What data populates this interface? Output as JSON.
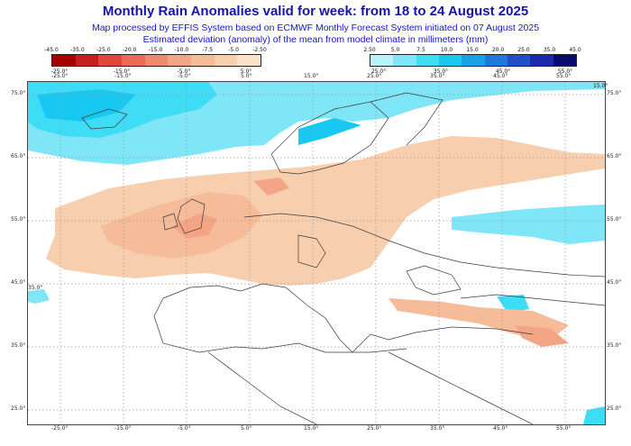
{
  "title": "Monthly Rain Anomalies valid for week: from 18 to 24 August 2025",
  "subtitle1": "Map processed by EFFIS System based on ECMWF Monthly Forecast System initiated on 07 August 2025",
  "subtitle2": "Estimated deviation (anomaly) of the mean from model climate in millimeters (mm)",
  "negative_scale": {
    "upper_labels": [
      "-45.0",
      "-35.0",
      "-25.0",
      "-20.0",
      "-15.0",
      "-10.0",
      "-7.5",
      "-5.0",
      "-2.50"
    ],
    "lower_labels": [
      "-25.0°",
      "-15.0°",
      "-5.0°",
      "5.0°"
    ],
    "colors": [
      "#a50000",
      "#c81e1e",
      "#e0463c",
      "#ea6a56",
      "#f08a6c",
      "#f4a585",
      "#f6bb98",
      "#f8cfae",
      "#fbe2c8"
    ]
  },
  "positive_scale": {
    "upper_labels": [
      "2.50",
      "5.0",
      "7.5",
      "10.0",
      "15.0",
      "20.0",
      "25.0",
      "35.0",
      "45.0"
    ],
    "lower_labels": [
      "25.0°",
      "35.0°",
      "45.0°",
      "55.0°"
    ],
    "colors": [
      "#b8f2fa",
      "#7fe6f7",
      "#3fdcf5",
      "#18c8f0",
      "#1aa0e6",
      "#1e7ad8",
      "#2050c8",
      "#1a2aa8",
      "#0a0a70"
    ]
  },
  "map_axes": {
    "x_ticks": [
      "-25.0°",
      "-15.0°",
      "-5.0°",
      "5.0°",
      "15.0°",
      "25.0°",
      "35.0°",
      "45.0°",
      "55.0°"
    ],
    "y_ticks": [
      "75.0°",
      "65.0°",
      "55.0°",
      "45.0°",
      "35.0°",
      "25.0°"
    ],
    "ne_corner_label": "15.0°",
    "left_edge_label": "35.0°"
  },
  "colors": {
    "title": "#1515a8",
    "coastline": "#3a3a3a",
    "grid": "#9a9a9a"
  }
}
